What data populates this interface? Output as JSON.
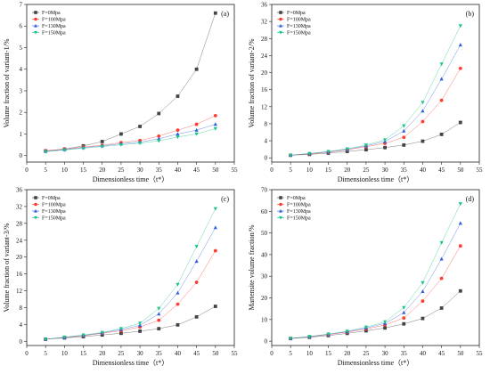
{
  "chart_data": [
    {
      "type": "line",
      "panel_label": "(a)",
      "xlabel": "Dimensionless time（t*）",
      "ylabel": "Volume fraction of variant-1/%",
      "x": [
        5,
        10,
        15,
        20,
        25,
        30,
        35,
        40,
        45,
        50
      ],
      "xlim": [
        0,
        55
      ],
      "xticks": [
        0,
        5,
        10,
        15,
        20,
        25,
        30,
        35,
        40,
        45,
        50,
        55
      ],
      "ylim": [
        -0.3,
        7
      ],
      "yticks": [
        0,
        1,
        2,
        3,
        4,
        5,
        6,
        7
      ],
      "legend_position": "top-left",
      "series": [
        {
          "name": "F=0Mpa",
          "values": [
            0.22,
            0.3,
            0.45,
            0.65,
            1.0,
            1.35,
            1.95,
            2.75,
            4.0,
            6.6
          ]
        },
        {
          "name": "F=100Mpa",
          "values": [
            0.22,
            0.3,
            0.4,
            0.48,
            0.6,
            0.7,
            0.9,
            1.18,
            1.45,
            1.85
          ]
        },
        {
          "name": "F=130Mpa",
          "values": [
            0.2,
            0.28,
            0.37,
            0.45,
            0.55,
            0.62,
            0.78,
            1.0,
            1.18,
            1.45
          ]
        },
        {
          "name": "F=150Mpa",
          "values": [
            0.18,
            0.26,
            0.34,
            0.42,
            0.5,
            0.58,
            0.68,
            0.86,
            1.0,
            1.25
          ]
        }
      ]
    },
    {
      "type": "line",
      "panel_label": "(b)",
      "xlabel": "Dimensionless time（t*）",
      "ylabel": "Volume fraction of variant-2/%",
      "x": [
        5,
        10,
        15,
        20,
        25,
        30,
        35,
        40,
        45,
        50
      ],
      "xlim": [
        0,
        55
      ],
      "xticks": [
        0,
        5,
        10,
        15,
        20,
        25,
        30,
        35,
        40,
        45,
        50,
        55
      ],
      "ylim": [
        -1,
        36
      ],
      "yticks": [
        0,
        4,
        8,
        12,
        16,
        20,
        24,
        28,
        32,
        36
      ],
      "legend_position": "top-left",
      "series": [
        {
          "name": "F=0Mpa",
          "values": [
            0.6,
            0.8,
            1.1,
            1.5,
            1.9,
            2.4,
            3.0,
            3.9,
            5.5,
            8.3
          ]
        },
        {
          "name": "F=100Mpa",
          "values": [
            0.6,
            0.9,
            1.3,
            1.9,
            2.6,
            3.4,
            4.8,
            8.5,
            13.5,
            21.0
          ]
        },
        {
          "name": "F=130Mpa",
          "values": [
            0.6,
            1.0,
            1.4,
            2.0,
            2.8,
            3.8,
            6.3,
            11.0,
            18.5,
            26.5
          ]
        },
        {
          "name": "F=150Mpa",
          "values": [
            0.6,
            1.0,
            1.5,
            2.1,
            3.0,
            4.2,
            7.5,
            13.0,
            22.0,
            31.0
          ]
        }
      ]
    },
    {
      "type": "line",
      "panel_label": "(c)",
      "xlabel": "Dimensionless time（t*）",
      "ylabel": "Volume fraction of variant-3/%",
      "x": [
        5,
        10,
        15,
        20,
        25,
        30,
        35,
        40,
        45,
        50
      ],
      "xlim": [
        0,
        55
      ],
      "xticks": [
        0,
        5,
        10,
        15,
        20,
        25,
        30,
        35,
        40,
        45,
        50,
        55
      ],
      "ylim": [
        -1,
        36
      ],
      "yticks": [
        0,
        4,
        8,
        12,
        16,
        20,
        24,
        28,
        32,
        36
      ],
      "legend_position": "top-left",
      "series": [
        {
          "name": "F=0Mpa",
          "values": [
            0.5,
            0.8,
            1.1,
            1.5,
            1.9,
            2.4,
            3.0,
            3.9,
            5.8,
            8.3
          ]
        },
        {
          "name": "F=100Mpa",
          "values": [
            0.5,
            0.9,
            1.3,
            1.9,
            2.5,
            3.4,
            5.0,
            8.8,
            14.0,
            21.5
          ]
        },
        {
          "name": "F=130Mpa",
          "values": [
            0.5,
            0.9,
            1.4,
            2.0,
            2.8,
            3.8,
            6.5,
            11.5,
            19.0,
            27.0
          ]
        },
        {
          "name": "F=150Mpa",
          "values": [
            0.5,
            1.0,
            1.5,
            2.1,
            3.0,
            4.3,
            7.8,
            13.5,
            22.5,
            31.5
          ]
        }
      ]
    },
    {
      "type": "line",
      "panel_label": "(d)",
      "xlabel": "Dimensionless time（t*）",
      "ylabel": "Martensite volume fraction/%",
      "x": [
        5,
        10,
        15,
        20,
        25,
        30,
        35,
        40,
        45,
        50
      ],
      "xlim": [
        0,
        55
      ],
      "xticks": [
        0,
        5,
        10,
        15,
        20,
        25,
        30,
        35,
        40,
        45,
        50,
        55
      ],
      "ylim": [
        -2,
        70
      ],
      "yticks": [
        0,
        10,
        20,
        30,
        40,
        50,
        60,
        70
      ],
      "legend_position": "top-left",
      "series": [
        {
          "name": "F=0Mpa",
          "values": [
            1.2,
            1.8,
            2.6,
            3.6,
            4.8,
            6.1,
            8.0,
            10.5,
            15.3,
            23.2
          ]
        },
        {
          "name": "F=100Mpa",
          "values": [
            1.3,
            2.0,
            3.0,
            4.2,
            5.6,
            7.5,
            10.7,
            18.5,
            29.0,
            44.0
          ]
        },
        {
          "name": "F=130Mpa",
          "values": [
            1.3,
            2.1,
            3.2,
            4.4,
            6.1,
            8.2,
            13.2,
            23.0,
            38.0,
            54.5
          ]
        },
        {
          "name": "F=150Mpa",
          "values": [
            1.3,
            2.2,
            3.3,
            4.6,
            6.5,
            8.9,
            15.5,
            27.0,
            45.5,
            63.5
          ]
        }
      ]
    }
  ],
  "series_colors": [
    "#444444",
    "#ff3b30",
    "#2f5fe0",
    "#18c486"
  ],
  "series_markers": [
    "square",
    "circle",
    "triangle-up",
    "triangle-down"
  ]
}
